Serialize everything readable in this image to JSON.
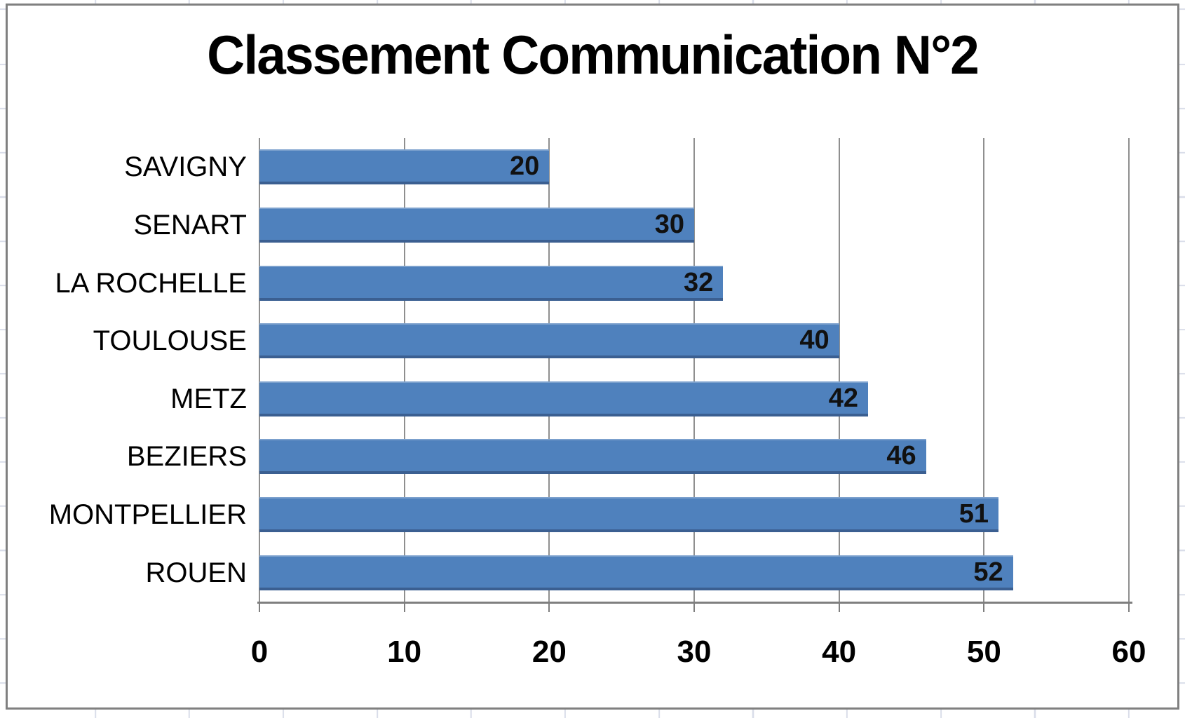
{
  "chart_data": {
    "type": "bar",
    "orientation": "horizontal",
    "title": "Classement Communication N°2",
    "categories": [
      "SAVIGNY",
      "SENART",
      "LA ROCHELLE",
      "TOULOUSE",
      "METZ",
      "BEZIERS",
      "MONTPELLIER",
      "ROUEN"
    ],
    "values": [
      20,
      30,
      32,
      40,
      42,
      46,
      51,
      52
    ],
    "xlabel": "",
    "ylabel": "",
    "xlim": [
      0,
      60
    ],
    "x_ticks": [
      0,
      10,
      20,
      30,
      40,
      50,
      60
    ],
    "grid": true,
    "legend": "none",
    "data_labels_position": "inside-end",
    "style": {
      "bar_color": "#4f81bd",
      "bar_edge_dark": "#3b5f91",
      "bar_edge_light": "#7ba0cd",
      "gridline_color": "#8f8f8f",
      "axis_color": "#7f7f7f",
      "frame_border_color": "#808080",
      "background_color": "#ffffff",
      "text_color": "#000000"
    }
  }
}
